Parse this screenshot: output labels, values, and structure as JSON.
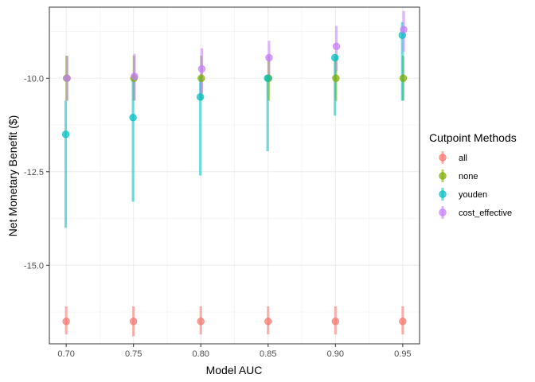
{
  "chart_data": {
    "type": "scatter",
    "xlabel": "Model AUC",
    "ylabel": "Net Monetary Benefit ($)",
    "x": [
      0.7,
      0.75,
      0.8,
      0.85,
      0.9,
      0.95
    ],
    "x_tick_labels": [
      "0.70",
      "0.75",
      "0.80",
      "0.85",
      "0.90",
      "0.95"
    ],
    "y_ticks": [
      -10.0,
      -12.5,
      -15.0
    ],
    "y_tick_labels": [
      "-10.0",
      "-12.5",
      "-15.0"
    ],
    "xlim": [
      0.6875,
      0.9625
    ],
    "ylim": [
      -17.1,
      -8.1
    ],
    "grid": true,
    "error_bars": true,
    "legend": {
      "title": "Cutpoint Methods",
      "position": "right"
    },
    "series": [
      {
        "name": "all",
        "color": "#F8766D",
        "values": [
          -16.5,
          -16.5,
          -16.5,
          -16.5,
          -16.5,
          -16.5
        ],
        "lower": [
          -16.85,
          -16.9,
          -16.85,
          -16.85,
          -16.85,
          -16.85
        ],
        "upper": [
          -16.1,
          -16.1,
          -16.1,
          -16.1,
          -16.1,
          -16.1
        ]
      },
      {
        "name": "none",
        "color": "#7CAE00",
        "values": [
          -10.0,
          -10.0,
          -10.0,
          -10.0,
          -10.0,
          -10.0
        ],
        "lower": [
          -10.6,
          -10.6,
          -10.6,
          -10.6,
          -10.6,
          -10.6
        ],
        "upper": [
          -9.4,
          -9.4,
          -9.4,
          -9.4,
          -9.4,
          -9.4
        ]
      },
      {
        "name": "youden",
        "color": "#00BFC4",
        "values": [
          -11.5,
          -11.05,
          -10.5,
          -10.0,
          -9.45,
          -8.85
        ],
        "lower": [
          -14.0,
          -13.3,
          -12.6,
          -11.95,
          -11.0,
          -10.6
        ],
        "upper": [
          -10.6,
          -9.95,
          -9.95,
          -9.95,
          -9.4,
          -8.5
        ]
      },
      {
        "name": "cost_effective",
        "color": "#C77CFF",
        "values": [
          -10.0,
          -9.95,
          -9.75,
          -9.45,
          -9.15,
          -8.7
        ],
        "lower": [
          -10.6,
          -10.6,
          -10.4,
          -10.0,
          -9.8,
          -9.3
        ],
        "upper": [
          -9.4,
          -9.35,
          -9.2,
          -9.0,
          -8.6,
          -8.2
        ]
      }
    ]
  }
}
